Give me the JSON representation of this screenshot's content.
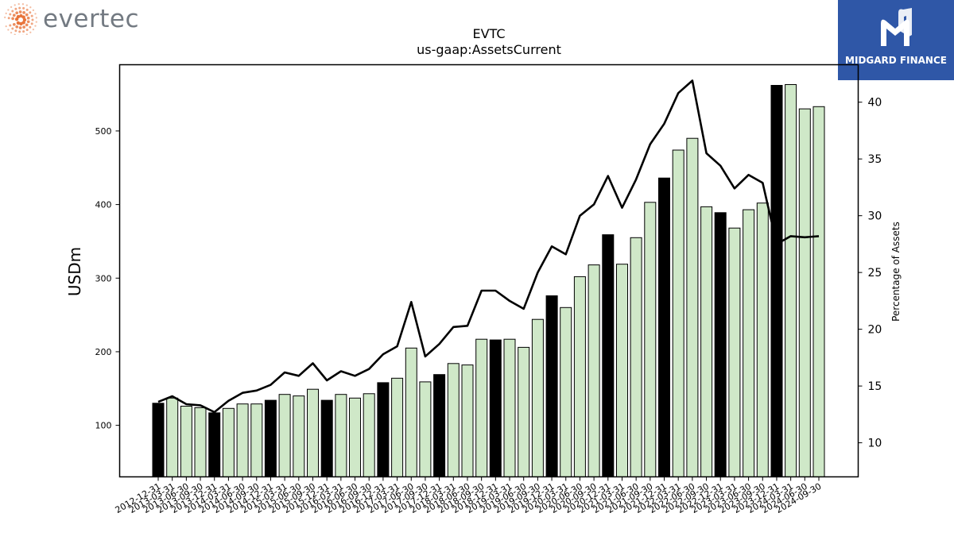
{
  "brand": {
    "name": "evertec",
    "logo_icon": "dotted-sunburst-icon",
    "color": "#737a82",
    "accent": "#e8743b"
  },
  "partner": {
    "name": "MIDGARD FINANCE",
    "logo_icon": "midgard-m-icon",
    "background": "#2f57a7"
  },
  "chart_data": {
    "type": "bar+line",
    "title": "EVTC",
    "subtitle": "us-gaap:AssetsCurrent",
    "ylabel": "USDm",
    "y2label": "Percentage of Assets",
    "ylim": [
      30,
      590
    ],
    "y2lim": [
      7,
      43.3
    ],
    "yticks": [
      100,
      200,
      300,
      400,
      500
    ],
    "y2ticks": [
      10,
      15,
      20,
      25,
      30,
      35,
      40
    ],
    "grid": false,
    "categories": [
      "2012-12-31",
      "2013-03-31",
      "2013-06-30",
      "2013-09-30",
      "2013-12-31",
      "2014-03-31",
      "2014-06-30",
      "2014-09-30",
      "2014-12-31",
      "2015-03-31",
      "2015-06-30",
      "2015-09-30",
      "2015-12-31",
      "2016-03-31",
      "2016-06-30",
      "2016-09-30",
      "2016-12-31",
      "2017-03-31",
      "2017-06-30",
      "2017-09-30",
      "2017-12-31",
      "2018-03-31",
      "2018-06-30",
      "2018-09-30",
      "2018-12-31",
      "2019-03-31",
      "2019-06-30",
      "2019-09-30",
      "2019-12-31",
      "2020-03-31",
      "2020-06-30",
      "2020-09-30",
      "2020-12-31",
      "2021-03-31",
      "2021-06-30",
      "2021-09-30",
      "2021-12-31",
      "2022-03-31",
      "2022-06-30",
      "2022-09-30",
      "2022-12-31",
      "2023-03-31",
      "2023-06-30",
      "2023-09-30",
      "2023-12-31",
      "2024-03-31",
      "2024-06-30",
      "2024-09-30"
    ],
    "series": [
      {
        "kind": "bar",
        "values": [
          130,
          137,
          126,
          124,
          117,
          123,
          129,
          129,
          134,
          142,
          140,
          149,
          134,
          142,
          137,
          143,
          158,
          164,
          205,
          159,
          169,
          184,
          182,
          217,
          216,
          217,
          206,
          244,
          276,
          260,
          302,
          318,
          359,
          319,
          355,
          403,
          436,
          474,
          490,
          397,
          389,
          368,
          393,
          402,
          562,
          563,
          530,
          533
        ],
        "year_end_color": "#000000",
        "quarter_color": "#cfe8c8"
      },
      {
        "kind": "line",
        "axis": "right",
        "color": "#000000",
        "values": [
          13.6,
          14.1,
          13.4,
          13.3,
          12.7,
          13.7,
          14.4,
          14.6,
          15.1,
          16.2,
          15.9,
          17.0,
          15.5,
          16.3,
          15.9,
          16.5,
          17.8,
          18.5,
          22.4,
          17.6,
          18.7,
          20.2,
          20.3,
          23.4,
          23.4,
          22.5,
          21.8,
          25.0,
          27.3,
          26.6,
          30.0,
          31.0,
          33.5,
          30.7,
          33.2,
          36.3,
          38.1,
          40.8,
          41.9,
          35.5,
          34.4,
          32.4,
          33.6,
          32.9,
          27.5,
          28.2,
          28.1,
          28.2
        ]
      }
    ]
  }
}
